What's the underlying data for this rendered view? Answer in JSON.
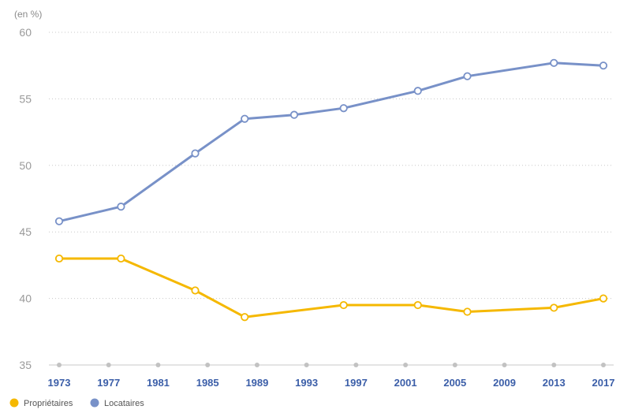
{
  "chart_data": {
    "type": "line",
    "unit_label": "(en %)",
    "ylim": [
      35,
      60
    ],
    "yticks": [
      "60",
      "55",
      "50",
      "45",
      "40",
      "35"
    ],
    "ytick_values": [
      60,
      55,
      50,
      45,
      40,
      35
    ],
    "x_tick_labels": [
      "1973",
      "1977",
      "1981",
      "1985",
      "1989",
      "1993",
      "1997",
      "2001",
      "2005",
      "2009",
      "2013",
      "2017"
    ],
    "grid": true,
    "legend_position": "bottom-left",
    "series": [
      {
        "name": "Propriétaires",
        "color": "#f5b800",
        "points": [
          {
            "x": 1973,
            "y": 43.0
          },
          {
            "x": 1978,
            "y": 43.0
          },
          {
            "x": 1984,
            "y": 40.6
          },
          {
            "x": 1988,
            "y": 38.6
          },
          {
            "x": 1996,
            "y": 39.5
          },
          {
            "x": 2002,
            "y": 39.5
          },
          {
            "x": 2006,
            "y": 39.0
          },
          {
            "x": 2013,
            "y": 39.3
          },
          {
            "x": 2017,
            "y": 40.0
          }
        ]
      },
      {
        "name": "Locataires",
        "color": "#7891c8",
        "points": [
          {
            "x": 1973,
            "y": 45.8
          },
          {
            "x": 1978,
            "y": 46.9
          },
          {
            "x": 1984,
            "y": 50.9
          },
          {
            "x": 1988,
            "y": 53.5
          },
          {
            "x": 1992,
            "y": 53.8
          },
          {
            "x": 1996,
            "y": 54.3
          },
          {
            "x": 2002,
            "y": 55.6
          },
          {
            "x": 2006,
            "y": 56.7
          },
          {
            "x": 2013,
            "y": 57.7
          },
          {
            "x": 2017,
            "y": 57.5
          }
        ]
      }
    ],
    "legend": [
      {
        "label": "Propriétaires",
        "color": "#f5b800"
      },
      {
        "label": "Locataires",
        "color": "#7891c8"
      }
    ]
  }
}
